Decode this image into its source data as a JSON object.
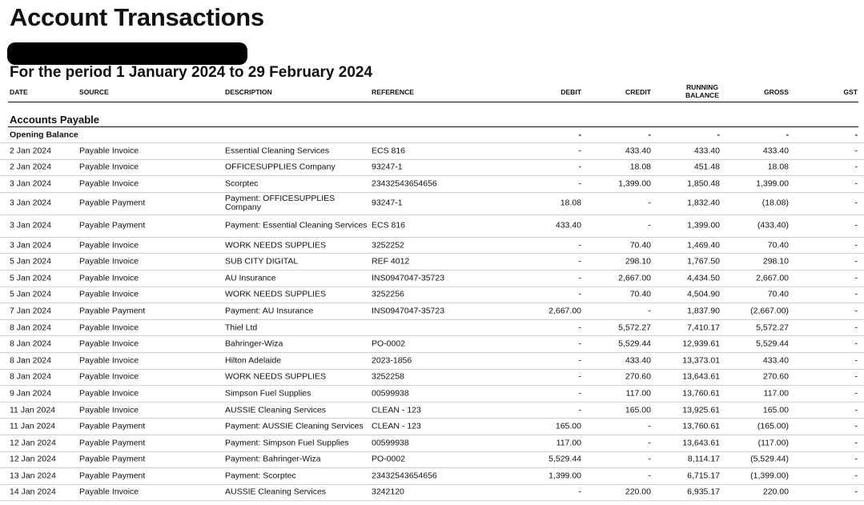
{
  "report": {
    "title": "Account Transactions",
    "period": "For the period 1 January 2024 to 29 February 2024"
  },
  "columns": {
    "date": "DATE",
    "source": "SOURCE",
    "description": "DESCRIPTION",
    "reference": "REFERENCE",
    "debit": "DEBIT",
    "credit": "CREDIT",
    "running_balance": "RUNNING BALANCE",
    "gross": "GROSS",
    "gst": "GST"
  },
  "section": {
    "name": "Accounts Payable",
    "opening": {
      "label": "Opening Balance",
      "debit": "-",
      "credit": "-",
      "running_balance": "-",
      "gross": "-",
      "gst": "-"
    }
  },
  "rows": [
    {
      "date": "2 Jan 2024",
      "source": "Payable Invoice",
      "description": "Essential Cleaning Services",
      "reference": "ECS 816",
      "debit": "-",
      "credit": "433.40",
      "running_balance": "433.40",
      "gross": "433.40",
      "gst": "-"
    },
    {
      "date": "2 Jan 2024",
      "source": "Payable Invoice",
      "description": "OFFICESUPPLIES Company",
      "reference": "93247-1",
      "debit": "-",
      "credit": "18.08",
      "running_balance": "451.48",
      "gross": "18.08",
      "gst": "-"
    },
    {
      "date": "3 Jan 2024",
      "source": "Payable Invoice",
      "description": "Scorptec",
      "reference": "23432543654656",
      "debit": "-",
      "credit": "1,399.00",
      "running_balance": "1,850.48",
      "gross": "1,399.00",
      "gst": "-"
    },
    {
      "date": "3 Jan 2024",
      "source": "Payable Payment",
      "description": "Payment: OFFICESUPPLIES Company",
      "reference": "93247-1",
      "debit": "18.08",
      "credit": "-",
      "running_balance": "1,832.40",
      "gross": "(18.08)",
      "gst": "-",
      "tall": true
    },
    {
      "date": "3 Jan 2024",
      "source": "Payable Payment",
      "description": "Payment: Essential Cleaning Services",
      "reference": "ECS 816",
      "debit": "433.40",
      "credit": "-",
      "running_balance": "1,399.00",
      "gross": "(433.40)",
      "gst": "-",
      "tall": true
    },
    {
      "date": "3 Jan 2024",
      "source": "Payable Invoice",
      "description": "WORK NEEDS SUPPLIES",
      "reference": "3252252",
      "debit": "-",
      "credit": "70.40",
      "running_balance": "1,469.40",
      "gross": "70.40",
      "gst": "-"
    },
    {
      "date": "5 Jan 2024",
      "source": "Payable Invoice",
      "description": "SUB CITY DIGITAL",
      "reference": "REF 4012",
      "debit": "-",
      "credit": "298.10",
      "running_balance": "1,767.50",
      "gross": "298.10",
      "gst": "-"
    },
    {
      "date": "5 Jan 2024",
      "source": "Payable Invoice",
      "description": "AU Insurance",
      "reference": "INS0947047-35723",
      "debit": "-",
      "credit": "2,667.00",
      "running_balance": "4,434.50",
      "gross": "2,667.00",
      "gst": "-"
    },
    {
      "date": "5 Jan 2024",
      "source": "Payable Invoice",
      "description": "WORK NEEDS SUPPLIES",
      "reference": "3252256",
      "debit": "-",
      "credit": "70.40",
      "running_balance": "4,504.90",
      "gross": "70.40",
      "gst": "-"
    },
    {
      "date": "7 Jan 2024",
      "source": "Payable Payment",
      "description": "Payment: AU Insurance",
      "reference": "INS0947047-35723",
      "debit": "2,667.00",
      "credit": "-",
      "running_balance": "1,837.90",
      "gross": "(2,667.00)",
      "gst": "-"
    },
    {
      "date": "8 Jan 2024",
      "source": "Payable Invoice",
      "description": "Thiel Ltd",
      "reference": "",
      "debit": "-",
      "credit": "5,572.27",
      "running_balance": "7,410.17",
      "gross": "5,572.27",
      "gst": "-"
    },
    {
      "date": "8 Jan 2024",
      "source": "Payable Invoice",
      "description": "Bahringer-Wiza",
      "reference": "PO-0002",
      "debit": "-",
      "credit": "5,529.44",
      "running_balance": "12,939.61",
      "gross": "5,529.44",
      "gst": "-"
    },
    {
      "date": "8 Jan 2024",
      "source": "Payable Invoice",
      "description": "Hilton Adelaide",
      "reference": "2023-1856",
      "debit": "-",
      "credit": "433.40",
      "running_balance": "13,373.01",
      "gross": "433.40",
      "gst": "-"
    },
    {
      "date": "8 Jan 2024",
      "source": "Payable Invoice",
      "description": "WORK NEEDS SUPPLIES",
      "reference": "3252258",
      "debit": "-",
      "credit": "270.60",
      "running_balance": "13,643.61",
      "gross": "270.60",
      "gst": "-"
    },
    {
      "date": "9 Jan 2024",
      "source": "Payable Invoice",
      "description": "Simpson Fuel Supplies",
      "reference": "00599938",
      "debit": "-",
      "credit": "117.00",
      "running_balance": "13,760.61",
      "gross": "117.00",
      "gst": "-"
    },
    {
      "date": "11 Jan 2024",
      "source": "Payable Invoice",
      "description": "AUSSIE Cleaning Services",
      "reference": "CLEAN - 123",
      "debit": "-",
      "credit": "165.00",
      "running_balance": "13,925.61",
      "gross": "165.00",
      "gst": "-"
    },
    {
      "date": "11 Jan 2024",
      "source": "Payable Payment",
      "description": "Payment: AUSSIE Cleaning Services",
      "reference": "CLEAN - 123",
      "debit": "165.00",
      "credit": "-",
      "running_balance": "13,760.61",
      "gross": "(165.00)",
      "gst": "-"
    },
    {
      "date": "12 Jan 2024",
      "source": "Payable Payment",
      "description": "Payment: Simpson Fuel Supplies",
      "reference": "00599938",
      "debit": "117.00",
      "credit": "-",
      "running_balance": "13,643.61",
      "gross": "(117.00)",
      "gst": "-"
    },
    {
      "date": "12 Jan 2024",
      "source": "Payable Payment",
      "description": "Payment: Bahringer-Wiza",
      "reference": "PO-0002",
      "debit": "5,529.44",
      "credit": "-",
      "running_balance": "8,114.17",
      "gross": "(5,529.44)",
      "gst": "-"
    },
    {
      "date": "13 Jan 2024",
      "source": "Payable Payment",
      "description": "Payment: Scorptec",
      "reference": "23432543654656",
      "debit": "1,399.00",
      "credit": "-",
      "running_balance": "6,715.17",
      "gross": "(1,399.00)",
      "gst": "-"
    },
    {
      "date": "14 Jan 2024",
      "source": "Payable Invoice",
      "description": "AUSSIE Cleaning Services",
      "reference": "3242120",
      "debit": "-",
      "credit": "220.00",
      "running_balance": "6,935.17",
      "gross": "220.00",
      "gst": "-"
    }
  ]
}
